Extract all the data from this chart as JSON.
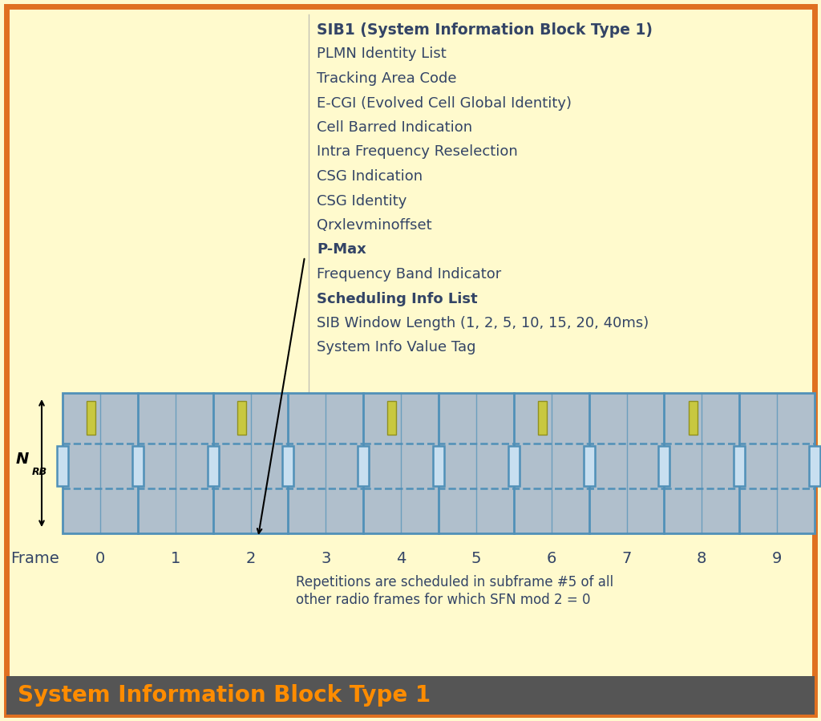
{
  "bg_color": "#FFFACD",
  "border_color": "#E07020",
  "title_bar_color": "#555555",
  "title_bar_text": "System Information Block Type 1",
  "title_bar_text_color": "#FF8C00",
  "sib1_title": "SIB1 (System Information Block Type 1)",
  "sib1_items": [
    "PLMN Identity List",
    "Tracking Area Code",
    "E-CGI (Evolved Cell Global Identity)",
    "Cell Barred Indication",
    "Intra Frequency Reselection",
    "CSG Indication",
    "CSG Identity",
    "Qrxlevminoffset",
    "P-Max",
    "Frequency Band Indicator",
    "Scheduling Info List",
    "SIB Window Length (1, 2, 5, 10, 15, 20, 40ms)",
    "System Info Value Tag"
  ],
  "bold_items": [
    "P-Max",
    "Scheduling Info List"
  ],
  "frame_grid_color": "#5090b8",
  "frame_bg_color": "#b0bfcc",
  "dashed_line_color": "#5090b8",
  "yellow_rect_color": "#c8c840",
  "yellow_rect_edge": "#909020",
  "blue_rect_color": "#5090b8",
  "blue_rect_face": "#c8dff0",
  "frame_labels": [
    "0",
    "1",
    "2",
    "3",
    "4",
    "5",
    "6",
    "7",
    "8",
    "9"
  ],
  "repetition_note_line1": "Repetitions are scheduled in subframe #5 of all",
  "repetition_note_line2": "other radio frames for which SFN mod 2 = 0",
  "frame_label_prefix": "Frame",
  "yellow_rects_at_frames": [
    0,
    2,
    4,
    6,
    8
  ],
  "text_color": "#334466",
  "nrb_n": "N",
  "nrb_rb": "RB"
}
